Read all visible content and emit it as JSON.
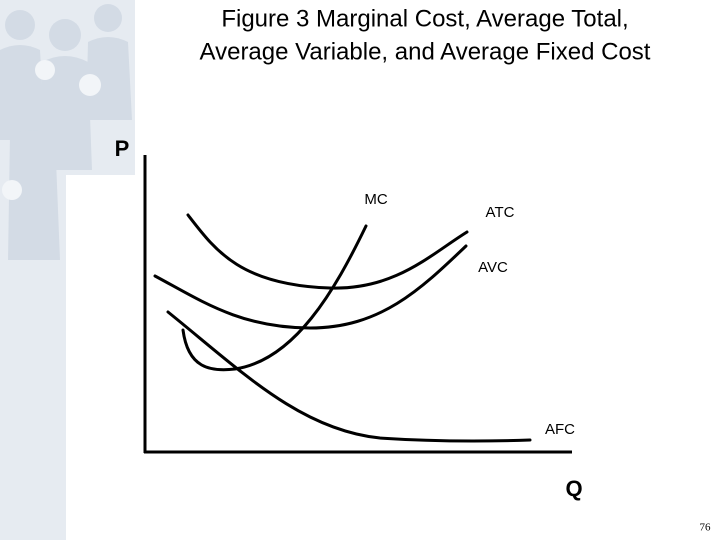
{
  "title": {
    "lines": [
      "Figure 3 Marginal Cost, Average Total,",
      "Average Variable, and Average Fixed Cost"
    ]
  },
  "axes": {
    "y_label": "P",
    "x_label": "Q"
  },
  "curves": {
    "mc": "MC",
    "atc": "ATC",
    "avc": "AVC",
    "afc": "AFC"
  },
  "footer": {
    "page_number": "76"
  }
}
